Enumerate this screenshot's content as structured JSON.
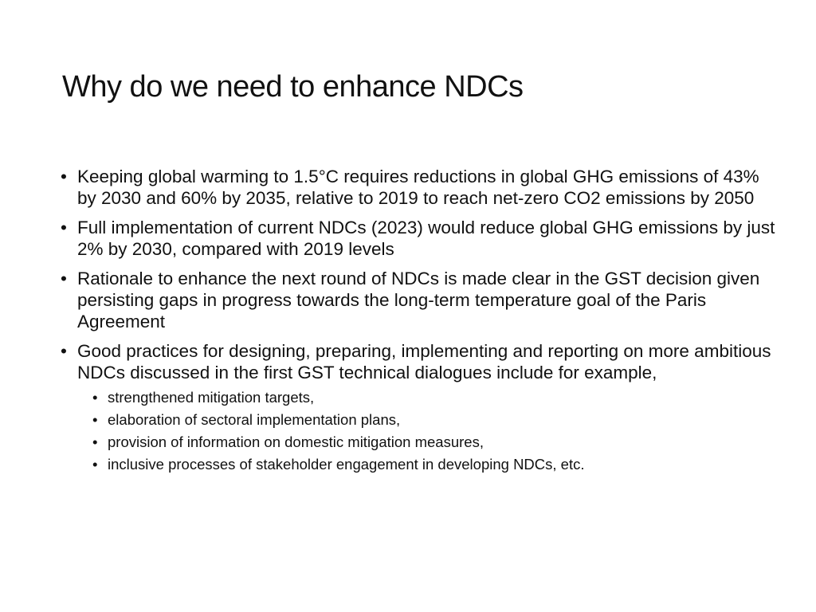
{
  "title": "Why do we need to enhance NDCs",
  "bullets": [
    "Keeping global warming to 1.5°C requires reductions in global GHG emissions of 43% by 2030 and 60% by 2035, relative to 2019 to reach net-zero CO2 emissions by 2050",
    "Full implementation of current NDCs (2023) would reduce global GHG emissions by just 2% by 2030, compared with 2019 levels",
    "Rationale to enhance the next round of NDCs is made clear in the GST decision given persisting gaps in progress towards the long-term temperature goal of the Paris Agreement",
    "Good practices for designing, preparing, implementing and reporting on more ambitious NDCs discussed in the first GST technical dialogues include for example,"
  ],
  "sub_bullets": [
    "strengthened mitigation targets,",
    "elaboration of sectoral implementation plans,",
    "provision of information on domestic mitigation measures,",
    "inclusive processes of stakeholder engagement in developing NDCs, etc."
  ]
}
